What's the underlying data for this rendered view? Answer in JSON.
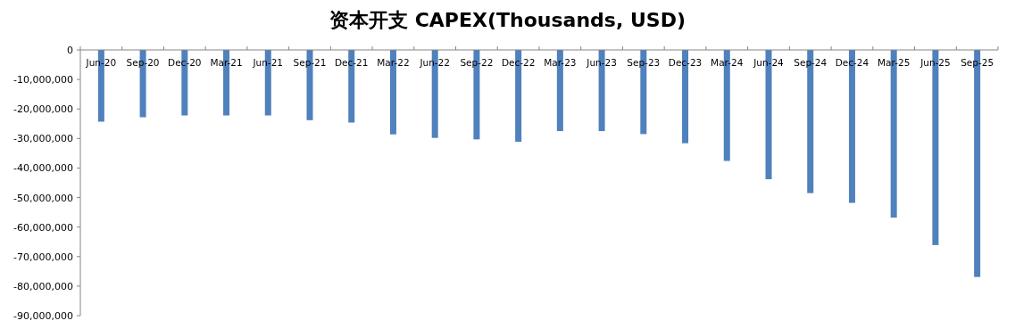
{
  "chart_data": {
    "type": "bar",
    "title": "资本开支 CAPEX(Thousands, USD)",
    "categories": [
      "Jun-20",
      "Sep-20",
      "Dec-20",
      "Mar-21",
      "Jun-21",
      "Sep-21",
      "Dec-21",
      "Mar-22",
      "Jun-22",
      "Sep-22",
      "Dec-22",
      "Mar-23",
      "Jun-23",
      "Sep-23",
      "Dec-23",
      "Mar-24",
      "Jun-24",
      "Sep-24",
      "Dec-24",
      "Mar-25",
      "Jun-25",
      "Sep-25"
    ],
    "values": [
      -24300000,
      -22800000,
      -22200000,
      -22200000,
      -22200000,
      -23800000,
      -24600000,
      -28600000,
      -29800000,
      -30300000,
      -31100000,
      -27500000,
      -27500000,
      -28500000,
      -31600000,
      -37600000,
      -43800000,
      -48500000,
      -51800000,
      -56800000,
      -66100000,
      -76900000
    ],
    "color": "#4f81bd",
    "ylim": [
      -90000000,
      0
    ],
    "yticks": [
      {
        "value": 0,
        "label": "0"
      },
      {
        "value": -10000000,
        "label": "-10,000,000"
      },
      {
        "value": -20000000,
        "label": "-20,000,000"
      },
      {
        "value": -30000000,
        "label": "-30,000,000"
      },
      {
        "value": -40000000,
        "label": "-40,000,000"
      },
      {
        "value": -50000000,
        "label": "-50,000,000"
      },
      {
        "value": -60000000,
        "label": "-60,000,000"
      },
      {
        "value": -70000000,
        "label": "-70,000,000"
      },
      {
        "value": -80000000,
        "label": "-80,000,000"
      },
      {
        "value": -90000000,
        "label": "-90,000,000"
      }
    ]
  }
}
